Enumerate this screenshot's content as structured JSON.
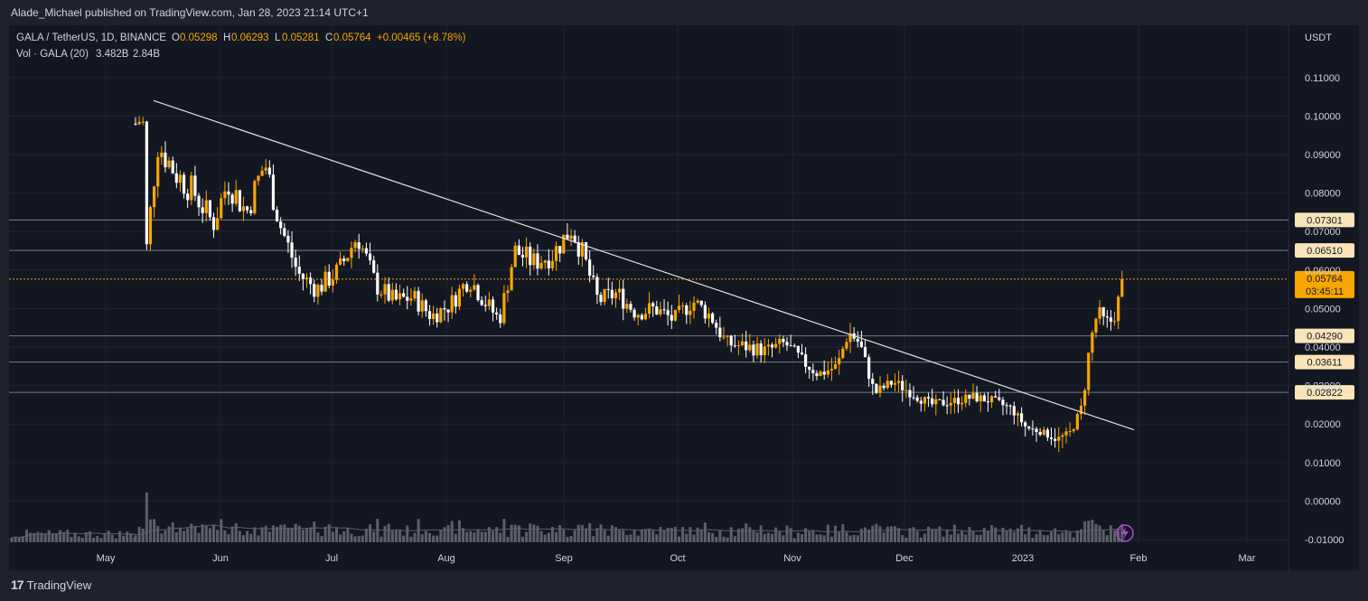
{
  "header": {
    "text": "Alade_Michael published on TradingView.com, Jan 28, 2023 21:14 UTC+1"
  },
  "legend": {
    "symbol": "GALA / TetherUS, 1D, BINANCE",
    "o_label": "O",
    "o": "0.05298",
    "h_label": "H",
    "h": "0.06293",
    "l_label": "L",
    "l": "0.05281",
    "c_label": "C",
    "c": "0.05764",
    "change": "+0.00465 (+8.78%)",
    "vol_label": "Vol · GALA (20)",
    "vol1": "3.482B",
    "vol2": "2.84B"
  },
  "footer": {
    "logo": "17",
    "brand": "TradingView"
  },
  "colors": {
    "up": "#f7a600",
    "down": "#ffffff",
    "level": "#787b86",
    "price": "#f7a600",
    "grid": "#1f2430",
    "text": "#d1d4dc",
    "bg": "#131722"
  },
  "chart_data": {
    "type": "candlestick",
    "currency": "USDT",
    "y_ticks": [
      "0.11000",
      "0.10000",
      "0.09000",
      "0.08000",
      "0.07000",
      "0.06000",
      "0.05000",
      "0.04000",
      "0.03000",
      "0.02000",
      "0.01000",
      "0.00000",
      "-0.01000"
    ],
    "ylim": [
      -0.01,
      0.12
    ],
    "x_ticks": [
      "May",
      "Jun",
      "Jul",
      "Aug",
      "Sep",
      "Oct",
      "Nov",
      "Dec",
      "2023",
      "Feb",
      "Mar"
    ],
    "levels": [
      "0.07301",
      "0.06510",
      "0.04290",
      "0.03611",
      "0.02822"
    ],
    "last_price": "0.05764",
    "countdown": "03:45:11",
    "trendline": {
      "start": [
        "May 11 2022",
        0.104
      ],
      "end": [
        "Jan 30 2023",
        0.0185
      ]
    },
    "series": [
      {
        "date": "May 8",
        "close": 0.098
      },
      {
        "date": "May 11",
        "close": 0.1
      },
      {
        "date": "May 12",
        "close": 0.065
      },
      {
        "date": "May 15",
        "close": 0.093
      },
      {
        "date": "May 20",
        "close": 0.085
      },
      {
        "date": "May 25",
        "close": 0.08
      },
      {
        "date": "May 30",
        "close": 0.072
      },
      {
        "date": "Jun 3",
        "close": 0.083
      },
      {
        "date": "Jun 8",
        "close": 0.075
      },
      {
        "date": "Jun 13",
        "close": 0.088
      },
      {
        "date": "Jun 17",
        "close": 0.072
      },
      {
        "date": "Jun 22",
        "close": 0.059
      },
      {
        "date": "Jun 27",
        "close": 0.055
      },
      {
        "date": "Jul 3",
        "close": 0.06
      },
      {
        "date": "Jul 8",
        "close": 0.069
      },
      {
        "date": "Jul 13",
        "close": 0.056
      },
      {
        "date": "Jul 18",
        "close": 0.052
      },
      {
        "date": "Jul 23",
        "close": 0.053
      },
      {
        "date": "Jul 28",
        "close": 0.048
      },
      {
        "date": "Aug 2",
        "close": 0.051
      },
      {
        "date": "Aug 7",
        "close": 0.058
      },
      {
        "date": "Aug 11",
        "close": 0.052
      },
      {
        "date": "Aug 15",
        "close": 0.047
      },
      {
        "date": "Aug 19",
        "close": 0.065
      },
      {
        "date": "Aug 24",
        "close": 0.062
      },
      {
        "date": "Aug 29",
        "close": 0.064
      },
      {
        "date": "Sep 3",
        "close": 0.071
      },
      {
        "date": "Sep 6",
        "close": 0.064
      },
      {
        "date": "Sep 10",
        "close": 0.052
      },
      {
        "date": "Sep 15",
        "close": 0.054
      },
      {
        "date": "Sep 20",
        "close": 0.049
      },
      {
        "date": "Sep 25",
        "close": 0.05
      },
      {
        "date": "Sep 30",
        "close": 0.047
      },
      {
        "date": "Oct 5",
        "close": 0.052
      },
      {
        "date": "Oct 10",
        "close": 0.048
      },
      {
        "date": "Oct 14",
        "close": 0.041
      },
      {
        "date": "Oct 20",
        "close": 0.04
      },
      {
        "date": "Oct 25",
        "close": 0.039
      },
      {
        "date": "Oct 30",
        "close": 0.041
      },
      {
        "date": "Nov 4",
        "close": 0.036
      },
      {
        "date": "Nov 8",
        "close": 0.033
      },
      {
        "date": "Nov 13",
        "close": 0.035
      },
      {
        "date": "Nov 16",
        "close": 0.044
      },
      {
        "date": "Nov 19",
        "close": 0.041
      },
      {
        "date": "Nov 23",
        "close": 0.028
      },
      {
        "date": "Nov 28",
        "close": 0.031
      },
      {
        "date": "Dec 3",
        "close": 0.028
      },
      {
        "date": "Dec 8",
        "close": 0.025
      },
      {
        "date": "Dec 14",
        "close": 0.026
      },
      {
        "date": "Dec 19",
        "close": 0.027
      },
      {
        "date": "Dec 24",
        "close": 0.026
      },
      {
        "date": "Dec 29",
        "close": 0.024
      },
      {
        "date": "Jan 2",
        "close": 0.019
      },
      {
        "date": "Jan 6",
        "close": 0.018
      },
      {
        "date": "Jan 10",
        "close": 0.016
      },
      {
        "date": "Jan 14",
        "close": 0.018
      },
      {
        "date": "Jan 17",
        "close": 0.025
      },
      {
        "date": "Jan 19",
        "close": 0.041
      },
      {
        "date": "Jan 21",
        "close": 0.049
      },
      {
        "date": "Jan 23",
        "close": 0.046
      },
      {
        "date": "Jan 25",
        "close": 0.047
      },
      {
        "date": "Jan 27",
        "close": 0.053
      },
      {
        "date": "Jan 28",
        "close": 0.05764
      }
    ]
  }
}
